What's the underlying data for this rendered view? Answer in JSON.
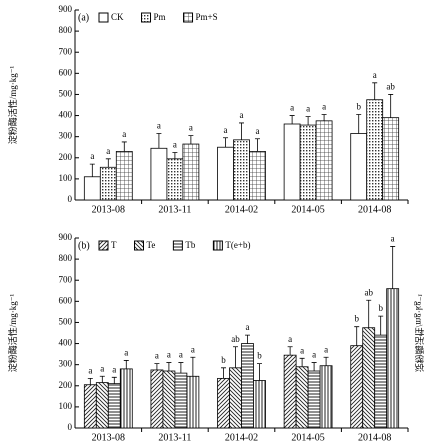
{
  "chart_data": [
    {
      "type": "bar",
      "panel": "(a)",
      "ylabel": "淀粉酶活性/mg·kg⁻¹",
      "categories": [
        "2013-08",
        "2013-11",
        "2014-02",
        "2014-05",
        "2014-08"
      ],
      "ylim": [
        0,
        900
      ],
      "yticks": [
        0,
        100,
        200,
        300,
        400,
        500,
        600,
        700,
        800,
        900
      ],
      "series": [
        {
          "name": "CK",
          "color": "#000000",
          "pattern": "none",
          "values": [
            110,
            245,
            250,
            360,
            315
          ],
          "errors": [
            60,
            70,
            45,
            40,
            90
          ],
          "letters": [
            "a",
            "a",
            "a",
            "a",
            "b"
          ]
        },
        {
          "name": "Pm",
          "color": "#000000",
          "pattern": "dots",
          "values": [
            155,
            195,
            285,
            355,
            475
          ],
          "errors": [
            40,
            30,
            80,
            40,
            80
          ],
          "letters": [
            "a",
            "a",
            "a",
            "a",
            "a"
          ]
        },
        {
          "name": "Pm+S",
          "color": "#000000",
          "pattern": "grid",
          "values": [
            230,
            265,
            230,
            375,
            390
          ],
          "errors": [
            45,
            40,
            60,
            30,
            110
          ],
          "letters": [
            "a",
            "a",
            "a",
            "a",
            "ab"
          ]
        }
      ]
    },
    {
      "type": "bar",
      "panel": "(b)",
      "ylabel": "淀粉酶活性/mg·kg⁻¹",
      "categories": [
        "2013-08",
        "2013-11",
        "2014-02",
        "2014-05",
        "2014-08"
      ],
      "ylim": [
        0,
        900
      ],
      "yticks": [
        0,
        100,
        200,
        300,
        400,
        500,
        600,
        700,
        800,
        900
      ],
      "series": [
        {
          "name": "T",
          "color": "#000000",
          "pattern": "diag",
          "values": [
            205,
            275,
            235,
            345,
            390
          ],
          "errors": [
            30,
            30,
            50,
            40,
            90
          ],
          "letters": [
            "a",
            "a",
            "b",
            "a",
            "b"
          ]
        },
        {
          "name": "Te",
          "color": "#000000",
          "pattern": "backdiag",
          "values": [
            215,
            270,
            285,
            290,
            475
          ],
          "errors": [
            30,
            40,
            100,
            40,
            130
          ],
          "letters": [
            "a",
            "a",
            "ab",
            "a",
            "ab"
          ]
        },
        {
          "name": "Tb",
          "color": "#000000",
          "pattern": "hlines",
          "values": [
            210,
            260,
            400,
            270,
            440
          ],
          "errors": [
            30,
            50,
            40,
            40,
            90
          ],
          "letters": [
            "a",
            "a",
            "a",
            "a",
            "b"
          ]
        },
        {
          "name": "T(e+b)",
          "color": "#000000",
          "pattern": "vlines",
          "values": [
            280,
            245,
            225,
            295,
            660
          ],
          "errors": [
            40,
            90,
            80,
            40,
            200
          ],
          "letters": [
            "a",
            "a",
            "b",
            "a",
            "a"
          ]
        }
      ]
    }
  ]
}
